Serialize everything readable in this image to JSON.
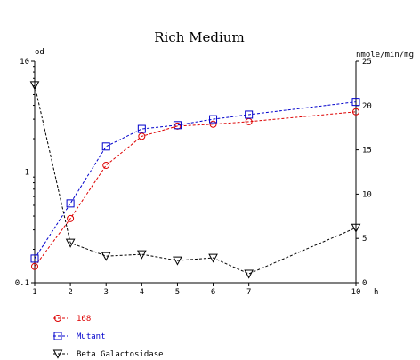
{
  "chart_data": {
    "type": "line",
    "title": "Rich Medium",
    "y_left_label": "od",
    "y_right_label": "nmole/min/mg",
    "x_unit_label": "h",
    "x_ticks": [
      1,
      2,
      3,
      4,
      5,
      6,
      7,
      10
    ],
    "xlim": [
      1,
      10
    ],
    "y_left_scale": "log",
    "y_left_lim": [
      0.1,
      10
    ],
    "y_left_ticks": [
      {
        "value": 10,
        "label": "10"
      },
      {
        "value": 1,
        "label": "1"
      },
      {
        "value": 0.1,
        "label": "0.1"
      }
    ],
    "y_right_lim": [
      0,
      25
    ],
    "y_right_ticks": [
      0,
      5,
      10,
      15,
      20,
      25
    ],
    "grid": false,
    "legend_position": "bottom-left",
    "series": [
      {
        "name": "168",
        "axis": "left",
        "color": "#dd0000",
        "marker": "circle",
        "x": [
          1,
          2,
          3,
          4,
          5,
          6,
          7,
          10
        ],
        "y": [
          0.14,
          0.38,
          1.15,
          2.1,
          2.6,
          2.7,
          2.85,
          3.5
        ]
      },
      {
        "name": "Mutant",
        "axis": "left",
        "color": "#0000cc",
        "marker": "square",
        "x": [
          1,
          2,
          3,
          4,
          5,
          6,
          7,
          10
        ],
        "y": [
          0.165,
          0.52,
          1.7,
          2.45,
          2.65,
          3.0,
          3.3,
          4.3
        ]
      },
      {
        "name": "Beta Galactosidase",
        "axis": "right",
        "color": "#000000",
        "marker": "triangle-down",
        "x": [
          1,
          2,
          3,
          4,
          5,
          6,
          7,
          10
        ],
        "y": [
          22.3,
          4.5,
          3.0,
          3.2,
          2.5,
          2.8,
          1.0,
          6.2
        ]
      }
    ]
  }
}
